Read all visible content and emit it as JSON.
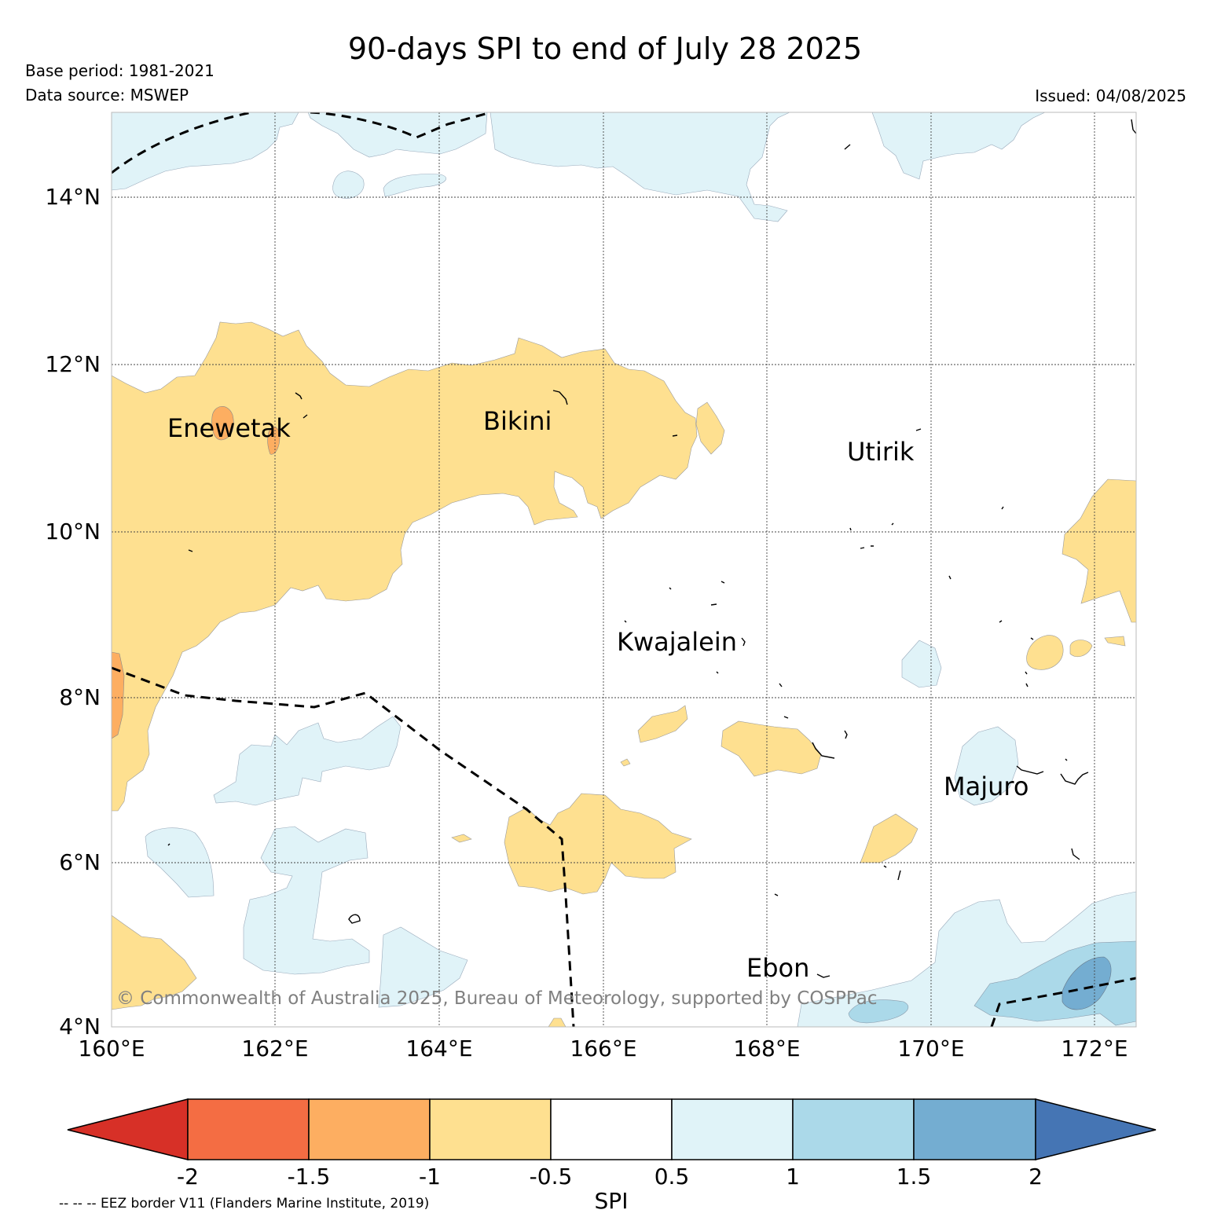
{
  "header": {
    "title": "90-days SPI to end of July 28 2025",
    "base_period": "Base period: 1981-2021",
    "data_source": "Data source: MSWEP",
    "issued": "Issued: 04/08/2025"
  },
  "map": {
    "lon_labels": [
      "160°E",
      "162°E",
      "164°E",
      "166°E",
      "168°E",
      "170°E",
      "172°E"
    ],
    "lat_labels": [
      "14°N",
      "12°N",
      "10°N",
      "8°N",
      "6°N",
      "4°N"
    ],
    "places": [
      "Enewetak",
      "Bikini",
      "Utirik",
      "Kwajalein",
      "Majuro",
      "Ebon"
    ],
    "copyright": "© Commonwealth of Australia 2025, Bureau of Meteorology, supported by COSPPac"
  },
  "colorbar": {
    "label": "SPI",
    "ticks": [
      "-2",
      "-1.5",
      "-1",
      "-0.5",
      "0.5",
      "1",
      "1.5",
      "2"
    ],
    "colors": {
      "below_-2": "#d73027",
      "-2_to_-1.5": "#f46d43",
      "-1.5_to_-1": "#fdae61",
      "-1_to_-0.5": "#fee090",
      "-0.5_to_0.5": "#ffffff",
      "0.5_to_1": "#e0f3f8",
      "1_to_1.5": "#abd9e9",
      "1.5_to_2": "#74add1",
      "above_2": "#4575b4"
    }
  },
  "footer": {
    "eez_note": "-- -- -- EEZ border V11 (Flanders Marine Institute, 2019)"
  }
}
